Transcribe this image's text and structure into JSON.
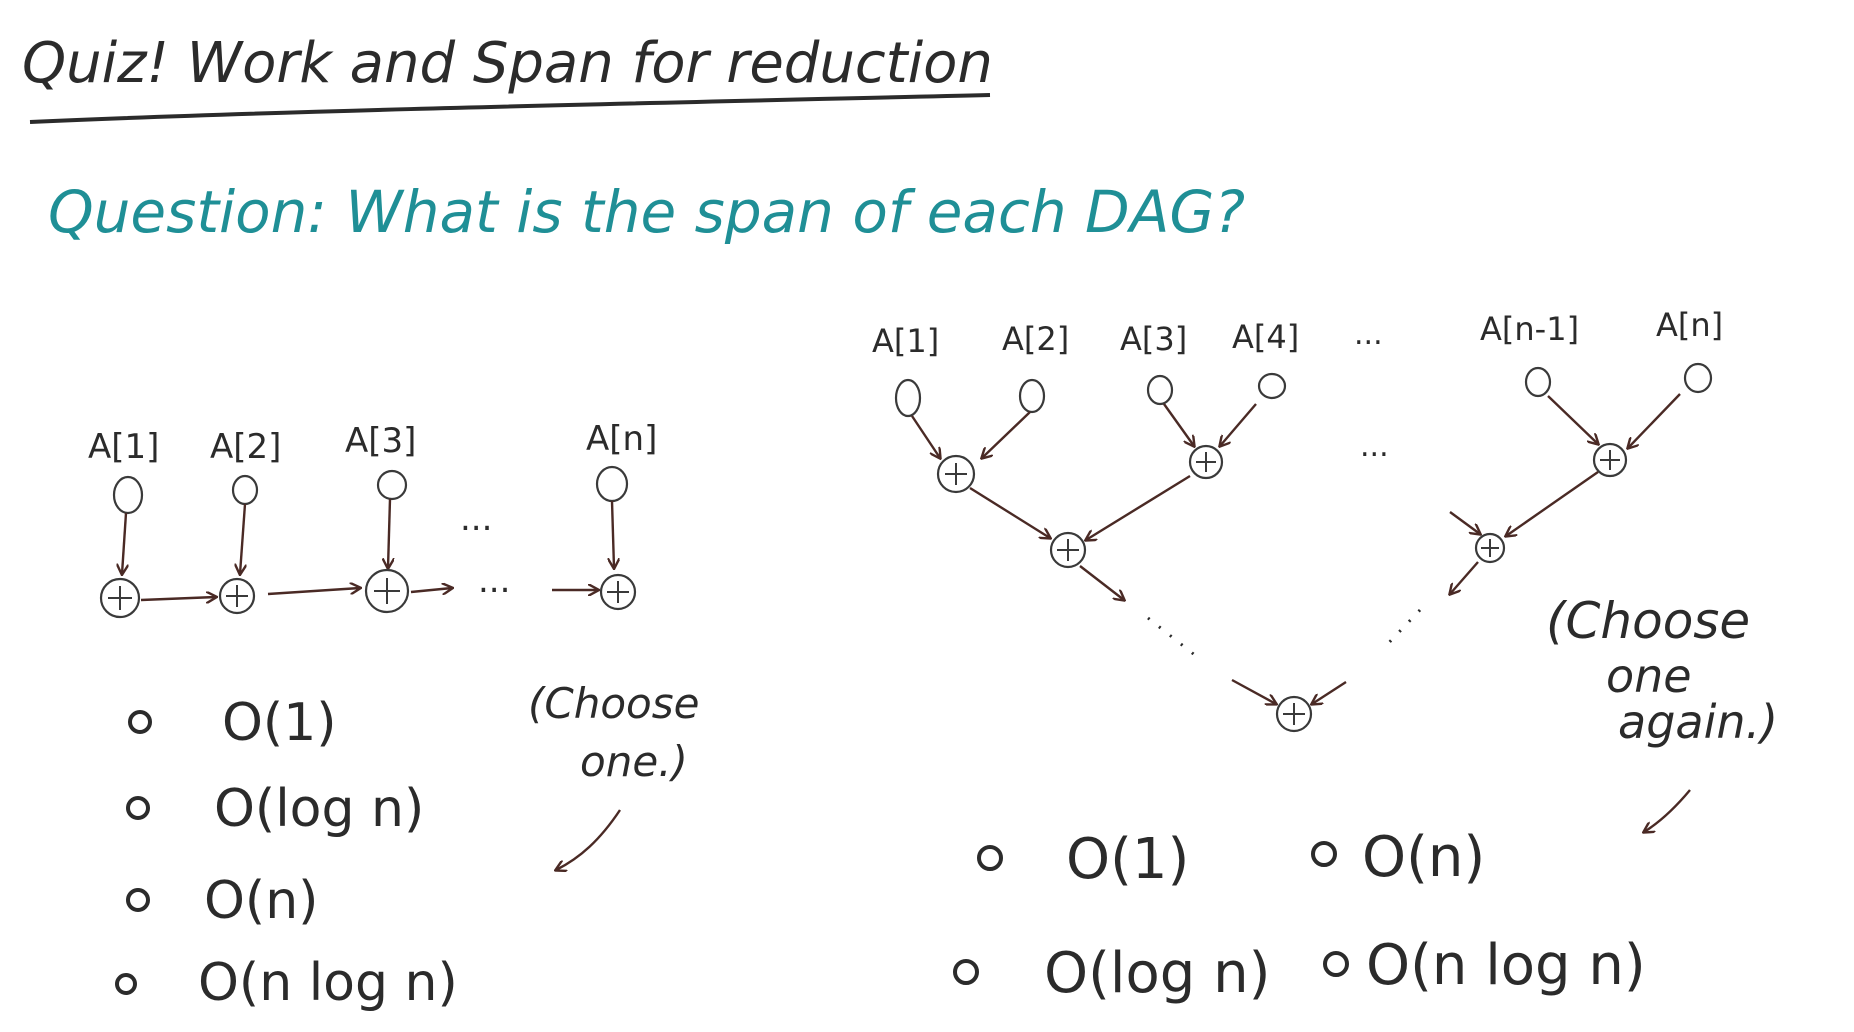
{
  "title": "Quiz! Work and Span for reduction",
  "question": "Question: What is the span of each DAG?",
  "dag1": {
    "inputs": [
      "A[1]",
      "A[2]",
      "A[3]",
      "A[n]"
    ],
    "ellipsis": "...",
    "options": [
      "O(1)",
      "O(log n)",
      "O(n)",
      "O(n log n)"
    ],
    "hint": [
      "(Choose",
      "one.)"
    ]
  },
  "dag2": {
    "inputs": [
      "A[1]",
      "A[2]",
      "A[3]",
      "A[4]",
      "A[n-1]",
      "A[n]"
    ],
    "ellipsis": "...",
    "options": [
      "O(1)",
      "O(n)",
      "O(log n)",
      "O(n log n)"
    ],
    "hint": [
      "(Choose",
      "one",
      "again.)"
    ]
  },
  "colors": {
    "ink": "#2b2b2b",
    "teal": "#1f8f96",
    "arrow": "#4a2a25"
  }
}
